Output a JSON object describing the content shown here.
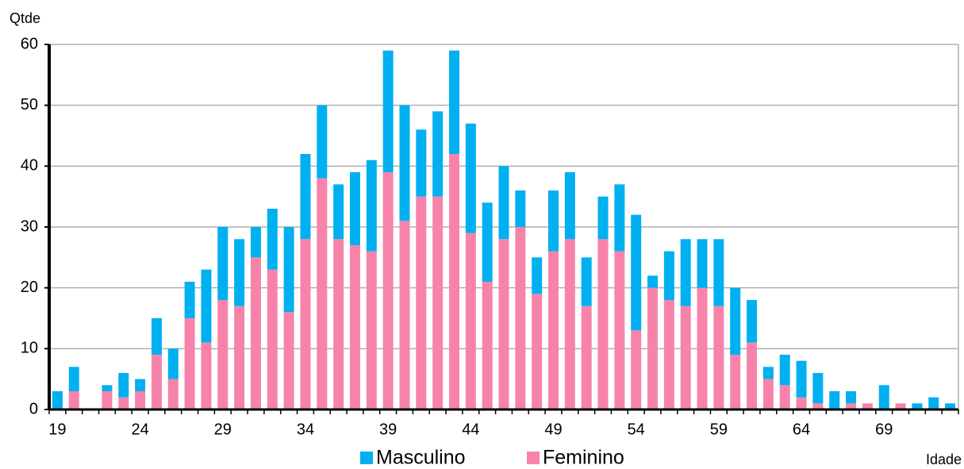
{
  "chart_data": {
    "type": "bar",
    "stacked": true,
    "x_label": "Idade",
    "y_label": "Qtde",
    "categories": [
      "19",
      null,
      null,
      null,
      null,
      "24",
      null,
      null,
      null,
      null,
      "29",
      null,
      null,
      null,
      null,
      "34",
      null,
      null,
      null,
      null,
      "39",
      null,
      null,
      null,
      null,
      "44",
      null,
      null,
      null,
      null,
      "49",
      null,
      null,
      null,
      null,
      "54",
      null,
      null,
      null,
      null,
      "59",
      null,
      null,
      null,
      null,
      "64",
      null,
      null,
      null,
      null,
      "69",
      null,
      null,
      null,
      null
    ],
    "series": [
      {
        "name": "Masculino",
        "color": "#00b0f0",
        "values": [
          3,
          4,
          0,
          1,
          4,
          2,
          6,
          5,
          6,
          12,
          12,
          11,
          5,
          10,
          14,
          14,
          12,
          9,
          12,
          15,
          20,
          19,
          11,
          14,
          17,
          18,
          13,
          12,
          6,
          6,
          10,
          11,
          8,
          7,
          11,
          19,
          2,
          8,
          11,
          8,
          11,
          11,
          7,
          2,
          5,
          6,
          5,
          3,
          2,
          0,
          4,
          0,
          1,
          2,
          1
        ]
      },
      {
        "name": "Feminino",
        "color": "#f783ab",
        "values": [
          0,
          3,
          0,
          3,
          2,
          3,
          9,
          5,
          15,
          11,
          18,
          17,
          25,
          23,
          16,
          28,
          38,
          28,
          27,
          26,
          39,
          31,
          35,
          35,
          42,
          29,
          21,
          28,
          30,
          19,
          26,
          28,
          17,
          28,
          26,
          13,
          20,
          18,
          17,
          20,
          17,
          9,
          11,
          5,
          4,
          2,
          1,
          0,
          1,
          1,
          0,
          1,
          0,
          0,
          0
        ]
      }
    ],
    "ylim": [
      0,
      60
    ],
    "yticks": [
      0,
      10,
      20,
      30,
      40,
      50,
      60
    ],
    "grid": true,
    "legend": "bottom"
  }
}
